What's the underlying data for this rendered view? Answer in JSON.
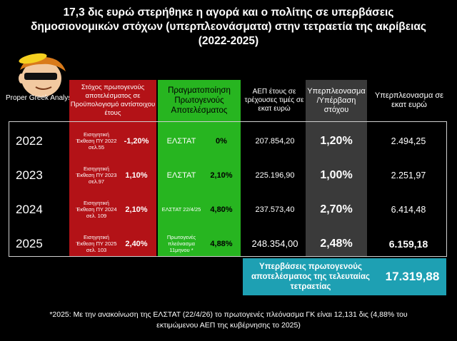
{
  "title": {
    "line1": "17,3 δις ευρώ στερήθηκε η αγορά και ο πολίτης σε υπερβάσεις",
    "line2": "δημοσιονομικών στόχων (υπερπλεονάσματα) στην  τετραετία της ακρίβειας",
    "line3": "(2022-2025)"
  },
  "logo": {
    "caption": "Proper Greek Analyst"
  },
  "headers": {
    "target": "Στόχος πρωτογενούς αποτελέσματος σε Προϋπολογισμό αντίστοιχου έτους",
    "realization": "Πραγματοποίηση Πρωτογενούς Αποτελέσματος",
    "gdp": "ΑΕΠ έτους σε τρέχουσες τιμές σε εκατ ευρώ",
    "surplus_pct": "Υπερπλεονασμα /Υπέρβαση στόχου",
    "surplus_eur": "Υπερπλεονασμα σε εκατ ευρώ"
  },
  "chart_data": {
    "type": "table",
    "columns": [
      "",
      "Στόχος πρωτογενούς αποτελέσματος σε Προϋπολογισμό αντίστοιχου έτους",
      "Πραγματοποίηση Πρωτογενούς Αποτελέσματος",
      "ΑΕΠ έτους σε τρέχουσες τιμές σε εκατ ευρώ",
      "Υπερπλεονασμα /Υπέρβαση στόχου",
      "Υπερπλεονασμα σε εκατ ευρώ"
    ],
    "rows": [
      {
        "year": "2022",
        "target_src": "Εισηγητική Έκθεση ΠΥ 2022 σελ.55",
        "target": "-1,20%",
        "real_src": "ΕΛΣΤΑΤ",
        "real": "0%",
        "gdp": "207.854,20",
        "surplus_pct": "1,20%",
        "surplus_eur": "2.494,25"
      },
      {
        "year": "2023",
        "target_src": "Εισηγητική Έκθεση ΠΥ 2023 σελ.97",
        "target": "1,10%",
        "real_src": "ΕΛΣΤΑΤ",
        "real": "2,10%",
        "gdp": "225.196,90",
        "surplus_pct": "1,00%",
        "surplus_eur": "2.251,97"
      },
      {
        "year": "2024",
        "target_src": "Εισηγητική Έκθεση ΠΥ 2024 σελ. 109",
        "target": "2,10%",
        "real_src": "ΕΛΣΤΑΤ 22/4/25",
        "real": "4,80%",
        "gdp": "237.573,40",
        "surplus_pct": "2,70%",
        "surplus_eur": "6.414,48"
      },
      {
        "year": "2025",
        "target_src": "Εισηγητική Έκθεση ΠΥ 2025 σελ. 103",
        "target": "2,40%",
        "real_src": "Πρωτογενές πλεόνασμα 11μηνου *",
        "real": "4,88%",
        "gdp": "248.354,00",
        "surplus_pct": "2,48%",
        "surplus_eur": "6.159,18"
      }
    ],
    "total": {
      "label": "Υπερβάσεις πρωτογενούς αποτελέσματος της τελευταίας τετραετίας",
      "value": "17.319,88"
    }
  },
  "colors": {
    "red": "#b31217",
    "green": "#27b520",
    "grey": "#3a3a3a",
    "teal": "#1ea0b3"
  },
  "footnote": {
    "line1": "*2025: Με την ανακοίνωση της ΕΛΣΤΑΤ (22/4/26) το πρωτογενές πλεόνασμα ΓΚ είναι 12,131 δις (4,88% του",
    "line2": "εκτιμώμενου ΑΕΠ της κυβέρνησης το 2025)"
  }
}
